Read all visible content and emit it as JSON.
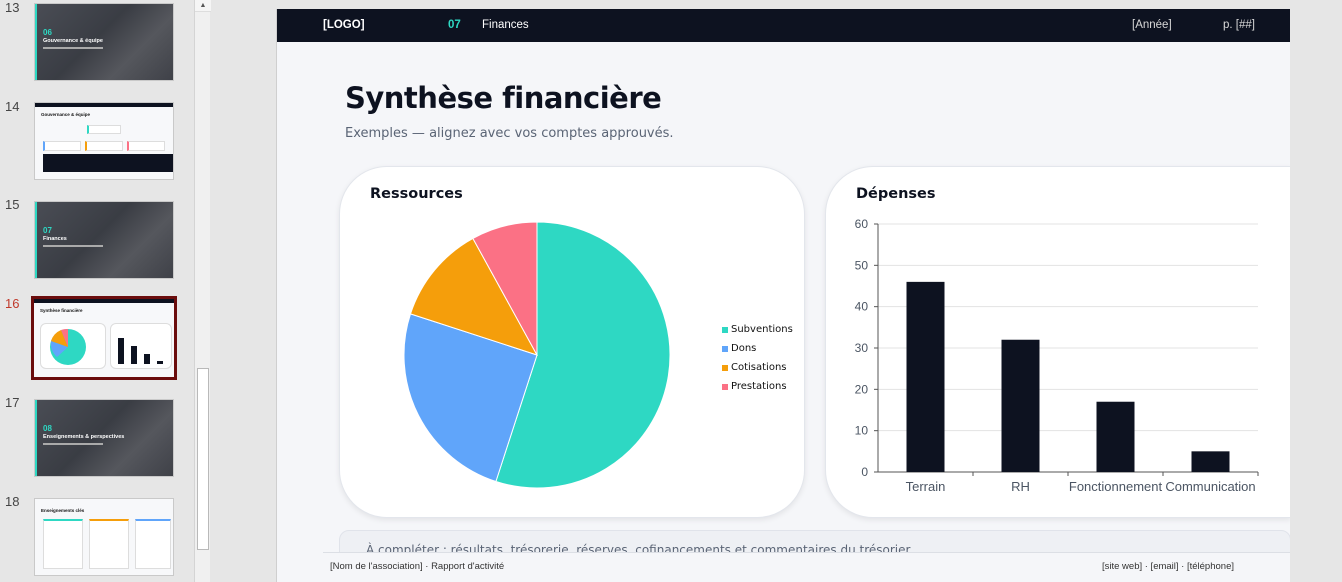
{
  "thumbnails": [
    {
      "number": "13",
      "kind": "section",
      "section_num": "06",
      "title": "Gouvernance & équipe"
    },
    {
      "number": "14",
      "kind": "content",
      "title": "Gouvernance & équipe"
    },
    {
      "number": "15",
      "kind": "section",
      "section_num": "07",
      "title": "Finances"
    },
    {
      "number": "16",
      "kind": "content",
      "title": "Synthèse financière",
      "active": true
    },
    {
      "number": "17",
      "kind": "section",
      "section_num": "08",
      "title": "Enseignements & perspectives"
    },
    {
      "number": "18",
      "kind": "content",
      "title": "Enseignements clés"
    }
  ],
  "slide": {
    "header": {
      "logo": "[LOGO]",
      "section_number": "07",
      "section_name": "Finances",
      "year": "[Année]",
      "page": "p. [##]"
    },
    "title": "Synthèse financière",
    "subtitle": "Exemples — alignez avec vos comptes approuvés.",
    "resources_card_title": "Ressources",
    "expenses_card_title": "Dépenses",
    "notes": "À compléter : résultats, trésorerie, réserves, cofinancements et commentaires du trésorier.",
    "footer": {
      "left": "[Nom de l'association] · Rapport d'activité",
      "right": "[site web] · [email] · [téléphone]"
    }
  },
  "colors": {
    "accent": "#2ed8c3",
    "dark": "#0d1220",
    "subventions": "#2ed8c3",
    "dons": "#60a5fa",
    "cotisations": "#f59e0b",
    "prestations": "#fb7185"
  },
  "chart_data": [
    {
      "type": "pie",
      "title": "Ressources",
      "categories": [
        "Subventions",
        "Dons",
        "Cotisations",
        "Prestations"
      ],
      "values": [
        55,
        25,
        12,
        8
      ],
      "colors": [
        "#2ed8c3",
        "#60a5fa",
        "#f59e0b",
        "#fb7185"
      ],
      "legend": "right"
    },
    {
      "type": "bar",
      "title": "Dépenses",
      "categories": [
        "Terrain",
        "RH",
        "Fonctionnement",
        "Communication"
      ],
      "values": [
        46,
        32,
        17,
        5
      ],
      "ylim": [
        0,
        60
      ],
      "yticks": [
        0,
        10,
        20,
        30,
        40,
        50,
        60
      ],
      "grid": true,
      "color": "#0d1220"
    }
  ]
}
